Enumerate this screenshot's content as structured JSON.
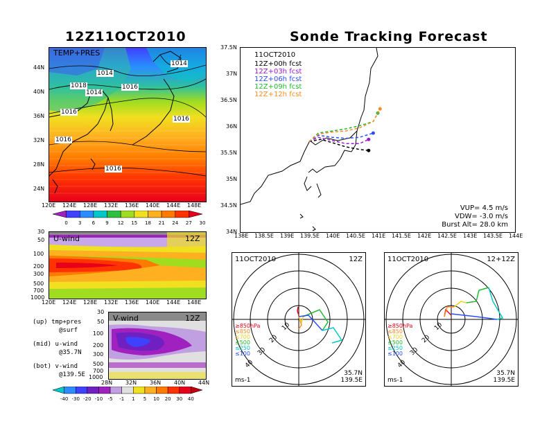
{
  "left_title": "12Z11OCT2010",
  "right_title": "Sonde Tracking Forecast",
  "map_panel": {
    "label": "TEMP+PRES",
    "isobars": [
      "1014",
      "1014",
      "1018",
      "1014",
      "1016",
      "1016",
      "1016",
      "1016",
      "1016"
    ],
    "yticks": [
      "44N",
      "40N",
      "36N",
      "32N",
      "28N",
      "24N"
    ],
    "xticks": [
      "120E",
      "124E",
      "128E",
      "132E",
      "136E",
      "140E",
      "144E",
      "148E"
    ],
    "colorbar": [
      "0",
      "3",
      "6",
      "9",
      "12",
      "15",
      "18",
      "21",
      "24",
      "27",
      "30"
    ],
    "colorbar_colors": [
      "#a020c0",
      "#4040ff",
      "#2a8cff",
      "#00c8c8",
      "#2ec040",
      "#a0dc20",
      "#f0e020",
      "#ffb020",
      "#ff7a00",
      "#ff3300",
      "#e8001a"
    ]
  },
  "u_panel": {
    "label": "U-wind",
    "time": "12Z",
    "yticks": [
      "30",
      "50",
      "100",
      "200",
      "300",
      "500",
      "700",
      "1000"
    ],
    "xticks": [
      "120E",
      "124E",
      "128E",
      "132E",
      "136E",
      "140E",
      "144E",
      "148E"
    ]
  },
  "v_panel": {
    "label": "V-wind",
    "time": "12Z",
    "yticks": [
      "30",
      "50",
      "100",
      "200",
      "300",
      "500",
      "700",
      "1000"
    ],
    "xticks": [
      "28N",
      "32N",
      "36N",
      "40N",
      "44N"
    ],
    "colorbar": [
      "-40",
      "-30",
      "-20",
      "-10",
      "-5",
      "-1",
      "1",
      "5",
      "10",
      "20",
      "30",
      "40"
    ],
    "colorbar_colors": [
      "#00c8c8",
      "#2a8cff",
      "#4040ff",
      "#7020c0",
      "#a020c0",
      "#c0a0e0",
      "#e0e0e0",
      "#f0e020",
      "#ffb020",
      "#ff7a00",
      "#ff3300",
      "#e8001a",
      "#c00010"
    ]
  },
  "legend_text": {
    "line1": "(up) tmp+pres",
    "line2": "@surf",
    "line3": "(mid) u-wind",
    "line4": "@35.7N",
    "line5": "(bot) v-wind",
    "line6": "@139.5E"
  },
  "track_panel": {
    "date": "11OCT2010",
    "legend": [
      {
        "text": "12Z+00h fcst",
        "color": "#000000"
      },
      {
        "text": "12Z+03h fcst",
        "color": "#9a1ac8"
      },
      {
        "text": "12Z+06h fcst",
        "color": "#2a4cff"
      },
      {
        "text": "12Z+09h fcst",
        "color": "#22b830"
      },
      {
        "text": "12Z+12h fcst",
        "color": "#ff8c20"
      }
    ],
    "params": {
      "vup": "VUP= 4.5 m/s",
      "vdw": "VDW= -3.0 m/s",
      "burst": "Burst Alt= 28.0 km"
    },
    "yticks": [
      "37.5N",
      "37N",
      "36.5N",
      "36N",
      "35.5N",
      "35N",
      "34.5N",
      "34N"
    ],
    "xticks": [
      "138E",
      "138.5E",
      "139E",
      "139.5E",
      "140E",
      "140.5E",
      "141E",
      "141.5E",
      "142E",
      "142.5E",
      "143E",
      "143.5E",
      "144E"
    ]
  },
  "hodo_left": {
    "date": "11OCT2010",
    "time": "12Z",
    "ring_labels": [
      "10",
      "20",
      "30",
      "40"
    ],
    "levels": [
      {
        "text": "≥850hPa",
        "color": "#e8001a"
      },
      {
        "text": "≤850",
        "color": "#ff8c20"
      },
      {
        "text": "≤700",
        "color": "#f0d020"
      },
      {
        "text": "≤500",
        "color": "#22b830"
      },
      {
        "text": "≤250",
        "color": "#00c8c8"
      },
      {
        "text": "≤100",
        "color": "#2a4cff"
      }
    ],
    "units": "ms-1",
    "lat": "35.7N",
    "lon": "139.5E"
  },
  "hodo_right": {
    "date": "11OCT2010",
    "time": "12+12Z",
    "ring_labels": [
      "10",
      "20",
      "30",
      "40"
    ],
    "levels": [
      {
        "text": "≥850hPa",
        "color": "#e8001a"
      },
      {
        "text": "≤850",
        "color": "#ff8c20"
      },
      {
        "text": "≤700",
        "color": "#f0d020"
      },
      {
        "text": "≤500",
        "color": "#22b830"
      },
      {
        "text": "≤250",
        "color": "#00c8c8"
      },
      {
        "text": "≤100",
        "color": "#2a4cff"
      }
    ],
    "units": "ms-1",
    "lat": "35.7N",
    "lon": "139.5E"
  },
  "chart_data": [
    {
      "type": "heatmap",
      "title": "12Z11OCT2010",
      "label": "TEMP+PRES",
      "x_range": [
        120,
        150
      ],
      "y_range": [
        22,
        48
      ],
      "isobar_values": [
        1014,
        1014,
        1018,
        1014,
        1016,
        1016,
        1016,
        1016,
        1016
      ],
      "colorbar_values": [
        0,
        3,
        6,
        9,
        12,
        15,
        18,
        21,
        24,
        27,
        30
      ]
    },
    {
      "type": "heatmap",
      "label": "U-wind",
      "x_range": [
        120,
        150
      ],
      "y_levels_hPa": [
        30,
        50,
        100,
        200,
        300,
        500,
        700,
        1000
      ],
      "lat": "35.7N"
    },
    {
      "type": "heatmap",
      "label": "V-wind",
      "x_range": [
        28,
        44
      ],
      "y_levels_hPa": [
        30,
        50,
        100,
        200,
        300,
        500,
        700,
        1000
      ],
      "lon": "139.5E",
      "colorbar_values": [
        -40,
        -30,
        -20,
        -10,
        -5,
        -1,
        1,
        5,
        10,
        20,
        30,
        40
      ]
    },
    {
      "type": "line",
      "title": "Sonde Tracking Forecast",
      "xlim": [
        138,
        144
      ],
      "ylim": [
        34,
        37.5
      ],
      "series": [
        {
          "name": "12Z+00h fcst",
          "x": [
            139.5,
            139.75,
            140.0,
            140.3,
            140.6,
            140.8
          ],
          "y": [
            35.72,
            35.76,
            35.7,
            35.62,
            35.57,
            35.55
          ]
        },
        {
          "name": "12Z+03h fcst",
          "x": [
            139.5,
            139.7,
            140.0,
            140.3,
            140.6,
            140.8
          ],
          "y": [
            35.72,
            35.8,
            35.74,
            35.68,
            35.68,
            35.76
          ]
        },
        {
          "name": "12Z+06h fcst",
          "x": [
            139.5,
            139.7,
            140.0,
            140.3,
            140.6,
            140.9
          ],
          "y": [
            35.72,
            35.84,
            35.8,
            35.78,
            35.8,
            35.88
          ]
        },
        {
          "name": "12Z+09h fcst",
          "x": [
            139.5,
            139.7,
            140.0,
            140.3,
            140.6,
            140.9,
            141.0
          ],
          "y": [
            35.72,
            35.88,
            35.92,
            35.96,
            36.02,
            36.1,
            36.26
          ]
        },
        {
          "name": "12Z+12h fcst",
          "x": [
            139.5,
            139.7,
            140.0,
            140.3,
            140.6,
            140.9,
            141.05
          ],
          "y": [
            35.72,
            35.86,
            35.9,
            35.92,
            35.98,
            36.1,
            36.34
          ]
        }
      ]
    }
  ]
}
